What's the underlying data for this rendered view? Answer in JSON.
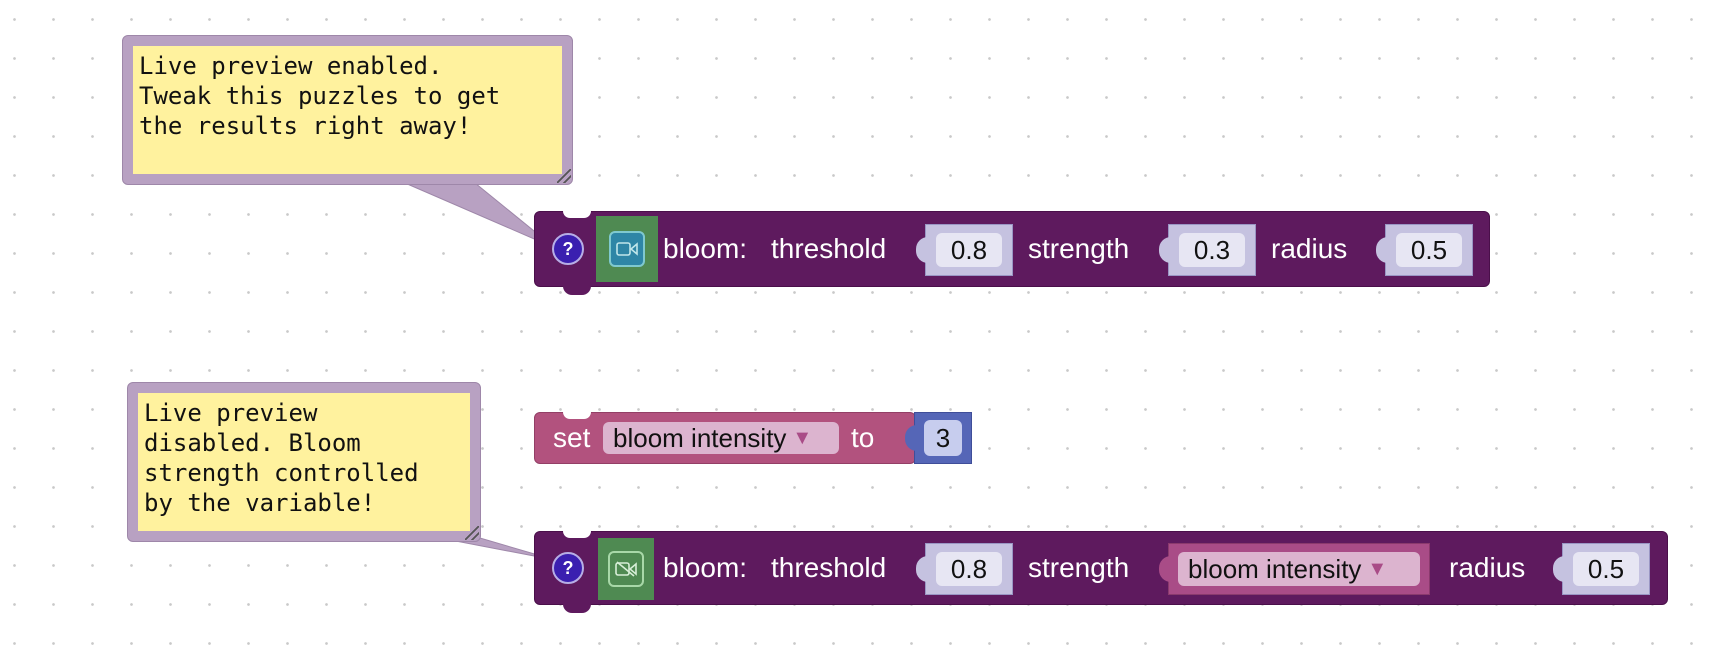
{
  "comments": [
    {
      "text": "Live preview enabled.\nTweak this puzzles to get\nthe results right away!"
    },
    {
      "text": "Live preview\ndisabled. Bloom\nstrength controlled\nby the variable!"
    }
  ],
  "help_glyph": "?",
  "bloom_blocks": [
    {
      "title": "bloom:",
      "camera_icon": "video-camera-icon",
      "threshold_label": "threshold",
      "threshold_value": "0.8",
      "strength_label": "strength",
      "strength_value": "0.3",
      "radius_label": "radius",
      "radius_value": "0.5"
    },
    {
      "title": "bloom:",
      "camera_icon": "video-camera-off-icon",
      "threshold_label": "threshold",
      "threshold_value": "0.8",
      "strength_label": "strength",
      "strength_variable": "bloom intensity",
      "radius_label": "radius",
      "radius_value": "0.5"
    }
  ],
  "set_block": {
    "set_label": "set",
    "variable": "bloom intensity",
    "to_label": "to",
    "value": "3"
  },
  "dropdown_glyph": "▼",
  "colors": {
    "bloom_block": "#5e1a5e",
    "camera_square": "#4f8a52",
    "variable_block": "#b2527e",
    "number_block": "#5566b7",
    "comment_bg": "#fff29e",
    "comment_frame": "#b8a1c2"
  }
}
